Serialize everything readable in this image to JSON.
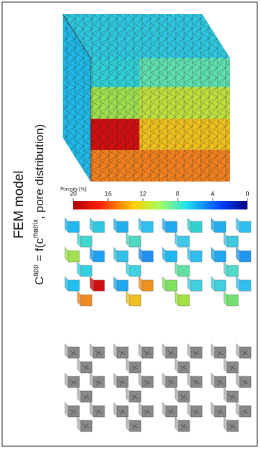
{
  "title": "FEM model",
  "formula": {
    "lhs": "C",
    "lhs_sup": "app",
    "mid": " = f(c",
    "mid_sup": "matrix",
    "rhs": ", pore distribution)"
  },
  "colorbar": {
    "label": "Porosity [%]",
    "range": [
      0,
      20
    ],
    "ticks": [
      0,
      4,
      8,
      12,
      16,
      20
    ]
  }
}
